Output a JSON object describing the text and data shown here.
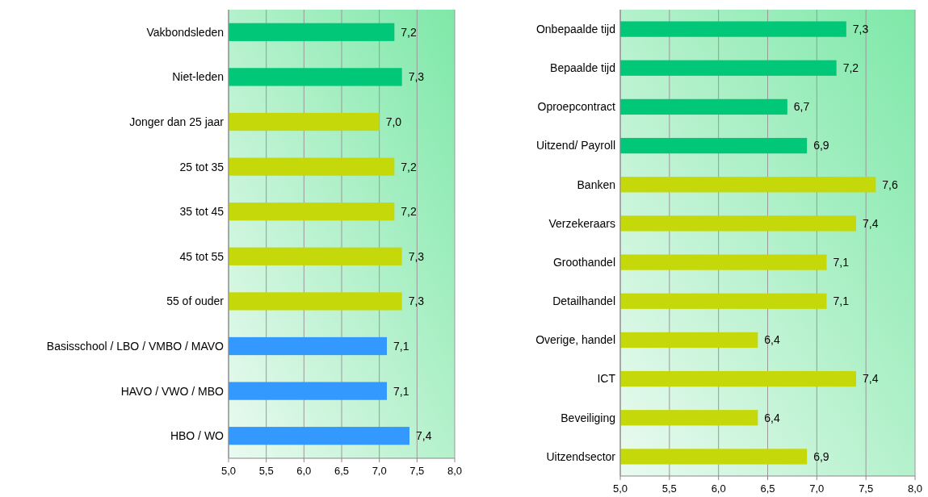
{
  "chart_data": [
    {
      "type": "bar",
      "orientation": "horizontal",
      "categories": [
        "Vakbondsleden",
        "Niet-leden",
        "Jonger dan 25 jaar",
        "25 tot 35",
        "35 tot 45",
        "45 tot 55",
        "55 of ouder",
        "Basisschool / LBO / VMBO / MAVO",
        "HAVO / VWO / MBO",
        "HBO / WO"
      ],
      "values": [
        7.2,
        7.3,
        7.0,
        7.2,
        7.2,
        7.3,
        7.3,
        7.1,
        7.1,
        7.4
      ],
      "value_labels": [
        "7,2",
        "7,3",
        "7,0",
        "7,2",
        "7,2",
        "7,3",
        "7,3",
        "7,1",
        "7,1",
        "7,4"
      ],
      "colors": [
        "#00c878",
        "#00c878",
        "#c5d90a",
        "#c5d90a",
        "#c5d90a",
        "#c5d90a",
        "#c5d90a",
        "#3399ff",
        "#3399ff",
        "#3399ff"
      ],
      "xlim": [
        5,
        8
      ],
      "xticks": [
        {
          "value": 5,
          "label": "5,0"
        },
        {
          "value": 5.5,
          "label": "5,5"
        },
        {
          "value": 6,
          "label": "6,0"
        },
        {
          "value": 6.5,
          "label": "6,5"
        },
        {
          "value": 7,
          "label": "7,0"
        },
        {
          "value": 7.5,
          "label": "7,5"
        },
        {
          "value": 8,
          "label": "8,0"
        }
      ],
      "grid": "x"
    },
    {
      "type": "bar",
      "orientation": "horizontal",
      "categories": [
        "Onbepaalde tijd",
        "Bepaalde tijd",
        "Oproepcontract",
        "Uitzend/ Payroll",
        "Banken",
        "Verzekeraars",
        "Groothandel",
        "Detailhandel",
        "Overige, handel",
        "ICT",
        "Beveiliging",
        "Uitzendsector"
      ],
      "values": [
        7.3,
        7.2,
        6.7,
        6.9,
        7.6,
        7.4,
        7.1,
        7.1,
        6.4,
        7.4,
        6.4,
        6.9
      ],
      "value_labels": [
        "7,3",
        "7,2",
        "6,7",
        "6,9",
        "7,6",
        "7,4",
        "7,1",
        "7,1",
        "6,4",
        "7,4",
        "6,4",
        "6,9"
      ],
      "colors": [
        "#00c878",
        "#00c878",
        "#00c878",
        "#00c878",
        "#c5d90a",
        "#c5d90a",
        "#c5d90a",
        "#c5d90a",
        "#c5d90a",
        "#c5d90a",
        "#c5d90a",
        "#c5d90a"
      ],
      "xlim": [
        5,
        8
      ],
      "xticks": [
        {
          "value": 5,
          "label": "5,0"
        },
        {
          "value": 5.5,
          "label": "5,5"
        },
        {
          "value": 6,
          "label": "6,0"
        },
        {
          "value": 6.5,
          "label": "6,5"
        },
        {
          "value": 7,
          "label": "7,0"
        },
        {
          "value": 7.5,
          "label": "7,5"
        },
        {
          "value": 8,
          "label": "8,0"
        }
      ],
      "grid": "x"
    }
  ]
}
